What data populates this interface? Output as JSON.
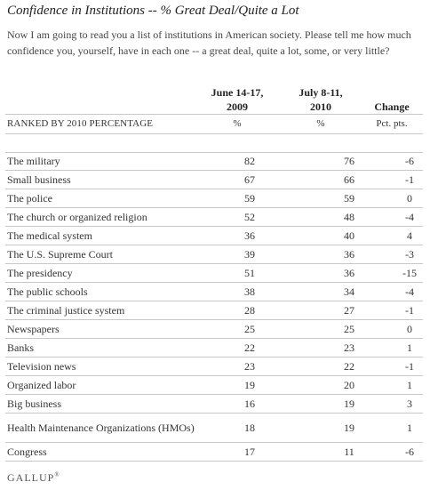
{
  "title": "Confidence in Institutions -- % Great Deal/Quite a Lot",
  "question": "Now I am going to read you a list of institutions in American society. Please tell me how much confidence you, yourself, have in each one -- a great deal, quite a lot, some, or very little?",
  "table": {
    "headers": {
      "col1_line1": "June 14-17,",
      "col1_line2": "2009",
      "col2_line1": "July 8-11,",
      "col2_line2": "2010",
      "col3": "Change"
    },
    "units_row": {
      "label": "RANKED BY 2010 PERCENTAGE",
      "col1": "%",
      "col2": "%",
      "col3": "Pct. pts."
    },
    "rows": [
      {
        "institution": "The military",
        "y2009": "82",
        "y2010": "76",
        "change": "-6"
      },
      {
        "institution": "Small business",
        "y2009": "67",
        "y2010": "66",
        "change": "-1"
      },
      {
        "institution": "The police",
        "y2009": "59",
        "y2010": "59",
        "change": "0"
      },
      {
        "institution": "The church or organized religion",
        "y2009": "52",
        "y2010": "48",
        "change": "-4"
      },
      {
        "institution": "The medical system",
        "y2009": "36",
        "y2010": "40",
        "change": "4"
      },
      {
        "institution": "The U.S. Supreme Court",
        "y2009": "39",
        "y2010": "36",
        "change": "-3"
      },
      {
        "institution": "The presidency",
        "y2009": "51",
        "y2010": "36",
        "change": "-15"
      },
      {
        "institution": "The public schools",
        "y2009": "38",
        "y2010": "34",
        "change": "-4"
      },
      {
        "institution": "The criminal justice system",
        "y2009": "28",
        "y2010": "27",
        "change": "-1"
      },
      {
        "institution": "Newspapers",
        "y2009": "25",
        "y2010": "25",
        "change": "0"
      },
      {
        "institution": "Banks",
        "y2009": "22",
        "y2010": "23",
        "change": "1"
      },
      {
        "institution": "Television news",
        "y2009": "23",
        "y2010": "22",
        "change": "-1"
      },
      {
        "institution": "Organized labor",
        "y2009": "19",
        "y2010": "20",
        "change": "1"
      },
      {
        "institution": "Big business",
        "y2009": "16",
        "y2010": "19",
        "change": "3"
      },
      {
        "institution": "Health Maintenance Organizations (HMOs)",
        "y2009": "18",
        "y2010": "19",
        "change": "1"
      },
      {
        "institution": "Congress",
        "y2009": "17",
        "y2010": "11",
        "change": "-6"
      }
    ]
  },
  "chart_data": {
    "type": "table",
    "title": "Confidence in Institutions -- % Great Deal/Quite a Lot",
    "columns": [
      "June 14-17, 2009",
      "July 8-11, 2010",
      "Change"
    ],
    "units": [
      "%",
      "%",
      "Pct. pts."
    ],
    "categories": [
      "The military",
      "Small business",
      "The police",
      "The church or organized religion",
      "The medical system",
      "The U.S. Supreme Court",
      "The presidency",
      "The public schools",
      "The criminal justice system",
      "Newspapers",
      "Banks",
      "Television news",
      "Organized labor",
      "Big business",
      "Health Maintenance Organizations (HMOs)",
      "Congress"
    ],
    "series": [
      {
        "name": "June 14-17, 2009",
        "values": [
          82,
          67,
          59,
          52,
          36,
          39,
          51,
          38,
          28,
          25,
          22,
          23,
          19,
          16,
          18,
          17
        ]
      },
      {
        "name": "July 8-11, 2010",
        "values": [
          76,
          66,
          59,
          48,
          40,
          36,
          36,
          34,
          27,
          25,
          23,
          22,
          20,
          19,
          19,
          11
        ]
      },
      {
        "name": "Change",
        "values": [
          -6,
          -1,
          0,
          -4,
          4,
          -3,
          -15,
          -4,
          -1,
          0,
          1,
          -1,
          1,
          3,
          1,
          -6
        ]
      }
    ]
  },
  "footer": {
    "logo": "GALLUP",
    "trademark": "®"
  }
}
